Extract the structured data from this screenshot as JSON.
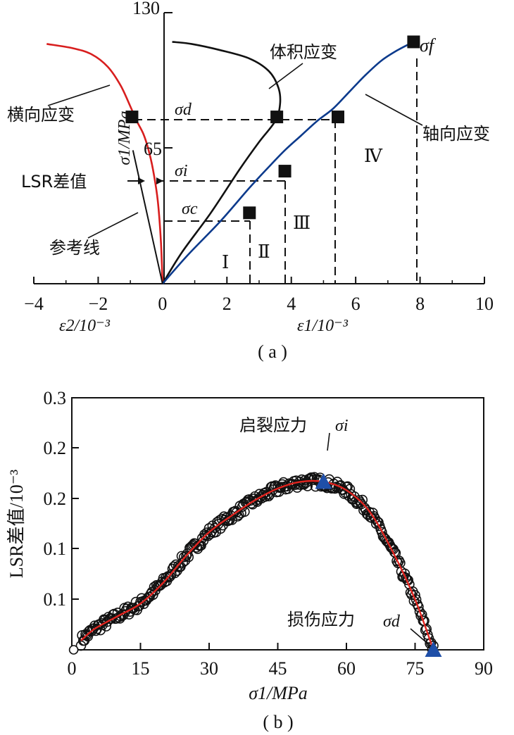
{
  "chart_data": [
    {
      "type": "line",
      "xlim": [
        -4,
        10
      ],
      "ylim": [
        0,
        130
      ],
      "xticks": [
        "−4",
        "−2",
        "0",
        "2",
        "4",
        "6",
        "8",
        "10"
      ],
      "yticks": [
        "130",
        "65"
      ],
      "xlabel_left": "ε2/10⁻³",
      "xlabel_right": "ε1/10⁻³",
      "ylabel": "σ1/MPa",
      "caption": "( a )",
      "series": [
        {
          "name": "横向应变",
          "color": "#d81e1e",
          "x": [
            0,
            -0.05,
            -0.15,
            -0.3,
            -0.45,
            -0.6,
            -0.8,
            -1.0,
            -1.3,
            -1.7,
            -2.2,
            -2.8,
            -3.6
          ],
          "y": [
            0,
            20,
            40,
            55,
            65,
            72,
            78,
            85,
            95,
            104,
            110,
            113,
            115
          ]
        },
        {
          "name": "体积应变",
          "color": "#111111",
          "x": [
            0,
            0.6,
            1.5,
            2.4,
            3.0,
            3.5,
            3.65,
            3.6,
            3.3,
            2.7,
            1.8,
            0.9,
            0.3
          ],
          "y": [
            0,
            15,
            34,
            55,
            68,
            78,
            86,
            94,
            102,
            108,
            112,
            115,
            116
          ]
        },
        {
          "name": "轴向应变",
          "color": "#0c3a8c",
          "x": [
            0,
            0.8,
            1.8,
            2.7,
            3.3,
            3.8,
            4.3,
            4.8,
            5.3,
            5.8,
            6.3,
            6.8,
            7.3,
            7.8
          ],
          "y": [
            0,
            14,
            30,
            46,
            56,
            64,
            71,
            78,
            84,
            92,
            100,
            107,
            112,
            116
          ]
        },
        {
          "name": "参考线",
          "color": "#111111",
          "x": [
            0,
            -0.92
          ],
          "y": [
            0,
            64
          ]
        }
      ],
      "markers": [
        {
          "label": "σd",
          "x": -0.95,
          "y": 80
        },
        {
          "label": "σd",
          "x": 3.55,
          "y": 80
        },
        {
          "label": "σd",
          "x": 5.45,
          "y": 80
        },
        {
          "label": "σi",
          "x": 3.8,
          "y": 54
        },
        {
          "label": "σc",
          "x": 2.7,
          "y": 34
        },
        {
          "label": "σf",
          "x": 7.8,
          "y": 116
        }
      ],
      "stress_labels": {
        "sigma_d": "σd",
        "sigma_i": "σi",
        "sigma_c": "σc",
        "sigma_f": "σf"
      },
      "stages": [
        "Ⅰ",
        "Ⅱ",
        "Ⅲ",
        "Ⅳ"
      ],
      "annotations": [
        "横向应变",
        "体积应变",
        "轴向应变",
        "LSR差值",
        "参考线"
      ]
    },
    {
      "type": "scatter",
      "xlim": [
        0,
        90
      ],
      "ylim": [
        0,
        0.3
      ],
      "xticks": [
        "0",
        "15",
        "30",
        "45",
        "60",
        "75",
        "90"
      ],
      "yticks": [
        "0.3",
        "0.2",
        "0.2",
        "0.1",
        "0.1"
      ],
      "xlabel": "σ1/MPa",
      "ylabel": "LSR差值/10⁻³",
      "caption": "( b )",
      "fit_color": "#e0241f",
      "marker_color": "#1f4fa8",
      "fit": {
        "x": [
          2,
          5,
          10,
          15,
          20,
          25,
          30,
          35,
          40,
          45,
          50,
          55,
          60,
          65,
          70,
          75,
          79
        ],
        "y": [
          0.011,
          0.025,
          0.04,
          0.055,
          0.08,
          0.112,
          0.14,
          0.16,
          0.178,
          0.192,
          0.2,
          0.2,
          0.19,
          0.165,
          0.118,
          0.06,
          0.0
        ]
      },
      "triangles": [
        {
          "label": "启裂应力 σi",
          "x": 55,
          "y": 0.2
        },
        {
          "label": "损伤应力 σd",
          "x": 79,
          "y": 0.0
        }
      ],
      "annotations": [
        "启裂应力",
        "σi",
        "损伤应力",
        "σd"
      ]
    }
  ]
}
